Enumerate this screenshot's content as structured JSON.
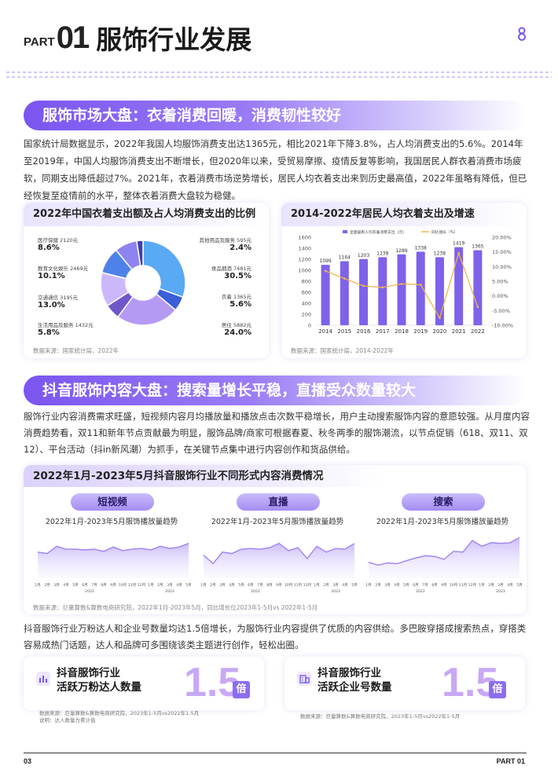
{
  "header": {
    "part": "PART",
    "num": "01",
    "title": "服饰行业发展"
  },
  "section1": {
    "banner": "服饰市场大盘：衣着消费回暖，消费韧性较好",
    "para": "国家统计局数据显示，2022年我国人均服饰消费支出达1365元，相比2021年下降3.8%，占人均消费支出的5.6%。2014年至2019年，中国人均服饰消费支出不断增长，但2020年以来，受贸易摩擦、疫情反复等影响，我国居民人群衣着消费市场疲软，同期支出降低超过7%。2021年，衣着消费市场逆势增长，居民人均衣着支出来到历史最高值，2022年虽略有降低，但已经恢复至疫情前的水平，整体衣着消费大盘较为稳健。"
  },
  "pie_card": {
    "title": "2022年中国衣着支出额及占人均消费支出的比例",
    "source": "数据来源：国家统计局，2022年"
  },
  "bar_card": {
    "title": "2014-2022年居民人均衣着支出及增速",
    "source": "数据来源：国家统计局，2014-2022年"
  },
  "section2": {
    "banner": "抖音服饰内容大盘：搜索量增长平稳，直播受众数量较大",
    "para": "服饰行业内容消费需求旺盛，短视频内容月均播放量和播放点击次数平稳增长，用户主动搜索服饰内容的意愿较强。从月度内容消费趋势看，双11和新年节点贡献最为明显，服饰品牌/商家可根据春夏、秋冬两季的服饰潮流，以节点促销（618、双11、双12）、平台活动（抖in新风潮）为抓手，在关键节点集中进行内容创作和货品供给。"
  },
  "trend_card": {
    "title": "2022年1月-2023年5月抖音服饰行业不同形式内容消费情况",
    "source": "数据来源：巨量算数&算数电商研究院，2022年1月-2023年5月，同比增长位2023年1-5月vs 2022年1-5月"
  },
  "section3": {
    "para": "抖音服饰行业万粉达人和企业号数量均达1.5倍增长，为服饰行业内容提供了优质的内容供给。多巴胺穿搭成搜索热点，穿搭类容易成热门话题，达人和品牌可多围绕该类主题进行创作，轻松出圈。"
  },
  "stat1": {
    "line1": "抖音服饰行业",
    "line2": "活跃万粉达人数量",
    "value": "1.5",
    "unit": "倍",
    "src1": "数据来源：巨量算数&算数电商研究院，2023年1-5月vs2022年1-5月",
    "src2": "说明：达人数量为累计值"
  },
  "stat2": {
    "line1": "抖音服饰行业",
    "line2": "活跃企业号数量",
    "value": "1.5",
    "unit": "倍",
    "src1": "数据来源：巨量算数&算数电商研究院，2023年1-5月vs2022年1-5月"
  },
  "footer": {
    "page": "03",
    "part": "PART 01"
  },
  "chart_data": [
    {
      "type": "pie",
      "title": "2022年中国衣着支出额及占人均消费支出的比例",
      "slices": [
        {
          "name": "食品烟酒",
          "amount": "7481元",
          "pct": "30.5%",
          "value": 30.5,
          "color": "#5aa9f5"
        },
        {
          "name": "衣着",
          "amount": "1365元",
          "pct": "5.6%",
          "value": 5.6,
          "color": "#3b5fd9"
        },
        {
          "name": "居住",
          "amount": "5882元",
          "pct": "24.0%",
          "value": 24.0,
          "color": "#b59af4"
        },
        {
          "name": "生活用品及服务",
          "amount": "1432元",
          "pct": "5.8%",
          "value": 5.8,
          "color": "#6f56c9"
        },
        {
          "name": "交通通信",
          "amount": "3195元",
          "pct": "13.0%",
          "value": 13.0,
          "color": "#cbb8fb"
        },
        {
          "name": "教育文化娱乐",
          "amount": "2469元",
          "pct": "10.1%",
          "value": 10.1,
          "color": "#4f82e8"
        },
        {
          "name": "医疗保健",
          "amount": "2120元",
          "pct": "8.6%",
          "value": 8.6,
          "color": "#8f84ef"
        },
        {
          "name": "其他用品及服务",
          "amount": "595元",
          "pct": "2.4%",
          "value": 2.4,
          "color": "#3f3fb0"
        }
      ]
    },
    {
      "type": "bar",
      "title": "2014-2022年居民人均衣着支出及增速",
      "categories": [
        "2014",
        "2015",
        "2016",
        "2017",
        "2018",
        "2019",
        "2020",
        "2021",
        "2022"
      ],
      "series": [
        {
          "name": "全国居民人均衣着消费支出（元）",
          "values": [
            1099,
            1164,
            1203,
            1238,
            1289,
            1338,
            1238,
            1419,
            1365
          ],
          "color": "#7e62ea"
        },
        {
          "name": "同比增长（%）",
          "values": [
            8.5,
            5.9,
            3.4,
            2.9,
            4.1,
            3.8,
            -7.5,
            14.6,
            -3.8
          ],
          "color": "#f1b54a"
        }
      ],
      "ylim_left": [
        0,
        1600
      ],
      "ylim_right": [
        -10,
        20
      ],
      "yticks_left": [
        "0",
        "200",
        "400",
        "600",
        "800",
        "1000",
        "1200",
        "1400",
        "1600"
      ],
      "yticks_right": [
        "-10.00%",
        "-5.00%",
        "0.00%",
        "5.00%",
        "10.00%",
        "15.00%",
        "20.00%"
      ]
    },
    {
      "type": "area",
      "label": "短视频",
      "title": "2022年1月-2023年5月服饰播放量趋势",
      "x": [
        "1月",
        "2月",
        "3月",
        "4月",
        "5月",
        "6月",
        "7月",
        "8月",
        "9月",
        "10月",
        "11月",
        "12月",
        "1月",
        "2月",
        "3月",
        "4月",
        "5月"
      ],
      "values": [
        56,
        54,
        64,
        60,
        60,
        59,
        60,
        57,
        63,
        58,
        60,
        61,
        59,
        64,
        61,
        63,
        68
      ]
    },
    {
      "type": "area",
      "label": "直播",
      "title": "2022年1月-2023年5月服饰播放量趋势",
      "x": [
        "1月",
        "2月",
        "3月",
        "4月",
        "5月",
        "6月",
        "7月",
        "8月",
        "9月",
        "10月",
        "11月",
        "12月",
        "1月",
        "2月",
        "3月",
        "4月",
        "5月"
      ],
      "values": [
        52,
        40,
        56,
        54,
        60,
        61,
        60,
        62,
        68,
        58,
        62,
        47,
        64,
        56,
        61,
        60,
        68
      ]
    },
    {
      "type": "area",
      "label": "搜索",
      "title": "2022年1月-2023年5月服饰播放量趋势",
      "x": [
        "1月",
        "2月",
        "3月",
        "4月",
        "5月",
        "6月",
        "7月",
        "8月",
        "9月",
        "10月",
        "11月",
        "12月",
        "1月",
        "2月",
        "3月",
        "4月",
        "5月"
      ],
      "values": [
        42,
        38,
        41,
        40,
        44,
        48,
        51,
        50,
        46,
        57,
        56,
        72,
        64,
        69,
        68,
        69,
        76
      ]
    }
  ],
  "trend_years": [
    "2022",
    "2023"
  ],
  "colors": {
    "accent": "#7a55f0",
    "line": "#9f82f2"
  }
}
